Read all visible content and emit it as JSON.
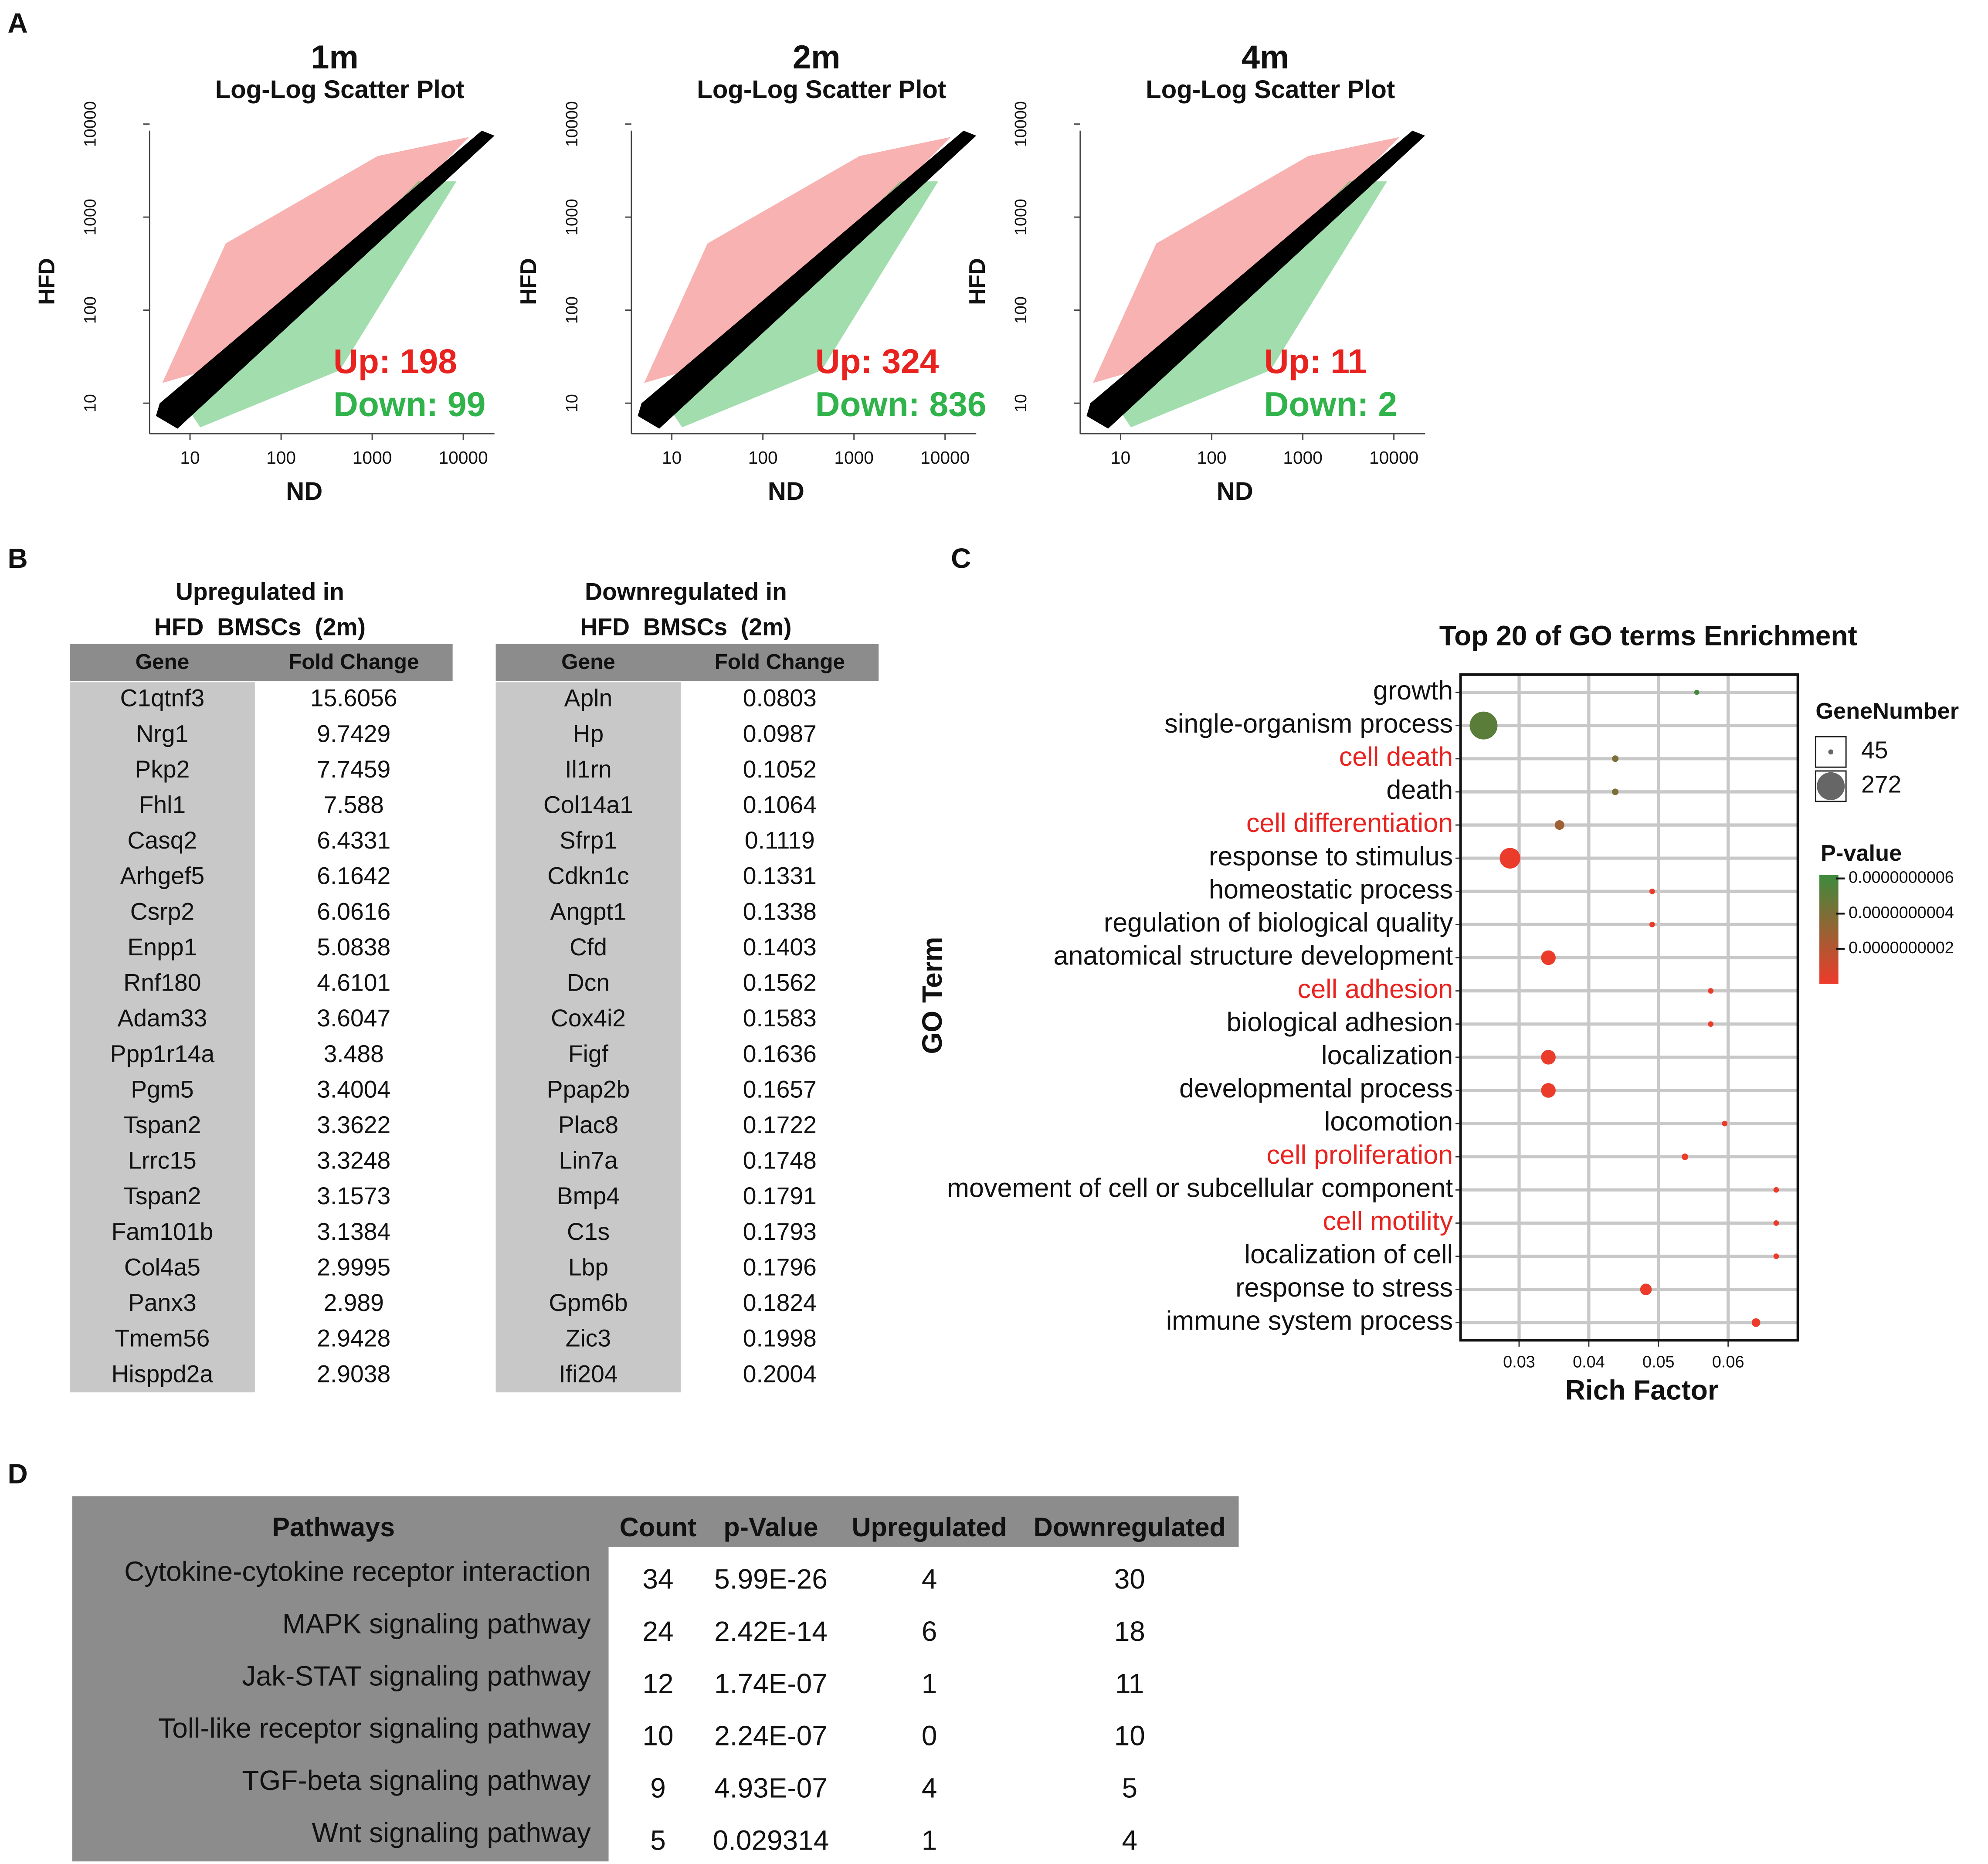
{
  "panel_labels": [
    "A",
    "B",
    "C",
    "D"
  ],
  "scatter_plots": [
    {
      "type": "scatter",
      "title": "1m",
      "subtitle": "Log-Log Scatter Plot",
      "xlabel": "ND",
      "ylabel": "HFD",
      "log": true,
      "xlim": [
        3.6,
        22000
      ],
      "ylim": [
        4.7,
        8500
      ],
      "xticks": [
        10,
        100,
        1000,
        10000
      ],
      "yticks": [
        10,
        100,
        1000,
        10000
      ],
      "annotations": [
        {
          "text": "Up: 198",
          "color": "#e8231f"
        },
        {
          "text": "Down: 99",
          "color": "#2fb34a"
        }
      ]
    },
    {
      "type": "scatter",
      "title": "2m",
      "subtitle": "Log-Log Scatter Plot",
      "xlabel": "ND",
      "ylabel": "HFD",
      "log": true,
      "xlim": [
        3.6,
        22000
      ],
      "ylim": [
        4.7,
        8500
      ],
      "xticks": [
        10,
        100,
        1000,
        10000
      ],
      "yticks": [
        10,
        100,
        1000,
        10000
      ],
      "annotations": [
        {
          "text": "Up: 324",
          "color": "#e8231f"
        },
        {
          "text": "Down: 836",
          "color": "#2fb34a"
        }
      ]
    },
    {
      "type": "scatter",
      "title": "4m",
      "subtitle": "Log-Log Scatter Plot",
      "xlabel": "ND",
      "ylabel": "HFD",
      "log": true,
      "xlim": [
        3.6,
        22000
      ],
      "ylim": [
        4.7,
        8500
      ],
      "xticks": [
        10,
        100,
        1000,
        10000
      ],
      "yticks": [
        10,
        100,
        1000,
        10000
      ],
      "annotations": [
        {
          "text": "Up: 11",
          "color": "#e8231f"
        },
        {
          "text": "Down: 2",
          "color": "#2fb34a"
        }
      ]
    }
  ],
  "tables": [
    {
      "title": [
        "Upregulated in",
        "HFD  BMSCs  (2m)"
      ],
      "columns": [
        "Gene",
        "Fold Change"
      ],
      "rows": [
        [
          "C1qtnf3",
          15.6056
        ],
        [
          "Nrg1",
          9.7429
        ],
        [
          "Pkp2",
          7.7459
        ],
        [
          "Fhl1",
          7.588
        ],
        [
          "Casq2",
          6.4331
        ],
        [
          "Arhgef5",
          6.1642
        ],
        [
          "Csrp2",
          6.0616
        ],
        [
          "Enpp1",
          5.0838
        ],
        [
          "Rnf180",
          4.6101
        ],
        [
          "Adam33",
          3.6047
        ],
        [
          "Ppp1r14a",
          3.488
        ],
        [
          "Pgm5",
          3.4004
        ],
        [
          "Tspan2",
          3.3622
        ],
        [
          "Lrrc15",
          3.3248
        ],
        [
          "Tspan2",
          3.1573
        ],
        [
          "Fam101b",
          3.1384
        ],
        [
          "Col4a5",
          2.9995
        ],
        [
          "Panx3",
          2.989
        ],
        [
          "Tmem56",
          2.9428
        ],
        [
          "Hisppd2a",
          2.9038
        ]
      ]
    },
    {
      "title": [
        "Downregulated in",
        "HFD  BMSCs  (2m)"
      ],
      "columns": [
        "Gene",
        "Fold Change"
      ],
      "rows": [
        [
          "Apln",
          0.0803
        ],
        [
          "Hp",
          0.0987
        ],
        [
          "Il1rn",
          0.1052
        ],
        [
          "Col14a1",
          0.1064
        ],
        [
          "Sfrp1",
          0.1119
        ],
        [
          "Cdkn1c",
          0.1331
        ],
        [
          "Angpt1",
          0.1338
        ],
        [
          "Cfd",
          0.1403
        ],
        [
          "Dcn",
          0.1562
        ],
        [
          "Cox4i2",
          0.1583
        ],
        [
          "Figf",
          0.1636
        ],
        [
          "Ppap2b",
          0.1657
        ],
        [
          "Plac8",
          0.1722
        ],
        [
          "Lin7a",
          0.1748
        ],
        [
          "Bmp4",
          0.1791
        ],
        [
          "C1s",
          0.1793
        ],
        [
          "Lbp",
          0.1796
        ],
        [
          "Gpm6b",
          0.1824
        ],
        [
          "Zic3",
          0.1998
        ],
        [
          "Ifi204",
          0.2004
        ]
      ]
    }
  ],
  "chart_data": {
    "type": "bubble",
    "title": "Top 20 of GO terms Enrichment",
    "xlabel": "Rich Factor",
    "ylabel": "GO Term",
    "categories": [
      "growth",
      "single-organism process",
      "cell death",
      "death",
      "cell differentiation",
      "response to stimulus",
      "homeostatic process",
      "regulation of biological quality",
      "anatomical structure development",
      "cell adhesion",
      "biological adhesion",
      "localization",
      "developmental process",
      "locomotion",
      "cell proliferation",
      "movement of cell or subcellular component",
      "cell motility",
      "localization of cell",
      "response to stress",
      "immune system process"
    ],
    "category_colors": [
      "#111111",
      "#111111",
      "#e8231f",
      "#111111",
      "#e8231f",
      "#111111",
      "#111111",
      "#111111",
      "#111111",
      "#e8231f",
      "#111111",
      "#111111",
      "#111111",
      "#111111",
      "#e8231f",
      "#111111",
      "#e8231f",
      "#111111",
      "#111111",
      "#111111"
    ],
    "values": [
      0.0555,
      0.0249,
      0.0438,
      0.0438,
      0.0358,
      0.0287,
      0.0491,
      0.0491,
      0.0342,
      0.0575,
      0.0575,
      0.0342,
      0.0342,
      0.0595,
      0.0538,
      0.0669,
      0.0669,
      0.0669,
      0.0482,
      0.064
    ],
    "sizes": [
      45,
      272,
      60,
      60,
      90,
      200,
      50,
      50,
      140,
      50,
      50,
      140,
      140,
      50,
      60,
      50,
      50,
      50,
      110,
      80
    ],
    "pvalues": [
      6e-10,
      5.2e-10,
      4e-10,
      4e-10,
      2.8e-10,
      1e-11,
      1e-11,
      1e-11,
      1e-11,
      1e-11,
      1e-11,
      1e-11,
      1e-11,
      1e-11,
      1e-11,
      1e-11,
      1e-11,
      1e-11,
      1e-11,
      1e-11
    ],
    "xlim": [
      0.0216,
      0.07
    ],
    "xticks": [
      0.03,
      0.04,
      0.05,
      0.06
    ],
    "grid": true,
    "size_legend_title": "GeneNumber",
    "size_legend": [
      45,
      272
    ],
    "color_legend_title": "P-value",
    "colorlim": [
      0,
      6.2e-10
    ],
    "colorticks": [
      {
        "value": 6e-10,
        "label": "0.0000000006"
      },
      {
        "value": 4e-10,
        "label": "0.0000000004"
      },
      {
        "value": 2e-10,
        "label": "0.0000000002"
      }
    ],
    "colors": [
      "#ee3b2b",
      "#3d8b3d"
    ]
  },
  "pathways_table": {
    "columns": [
      "Pathways",
      "Count",
      "p-Value",
      "Upregulated",
      "Downregulated"
    ],
    "rows": [
      [
        "Cytokine-cytokine receptor interaction",
        34,
        "5.99E-26",
        4,
        30
      ],
      [
        "MAPK signaling pathway",
        24,
        "2.42E-14",
        6,
        18
      ],
      [
        "Jak-STAT signaling pathway",
        12,
        "1.74E-07",
        1,
        11
      ],
      [
        "Toll-like receptor signaling pathway",
        10,
        "2.24E-07",
        0,
        10
      ],
      [
        "TGF-beta signaling pathway",
        9,
        "4.93E-07",
        4,
        5
      ],
      [
        "Wnt signaling pathway",
        5,
        "0.029314",
        1,
        4
      ]
    ]
  }
}
